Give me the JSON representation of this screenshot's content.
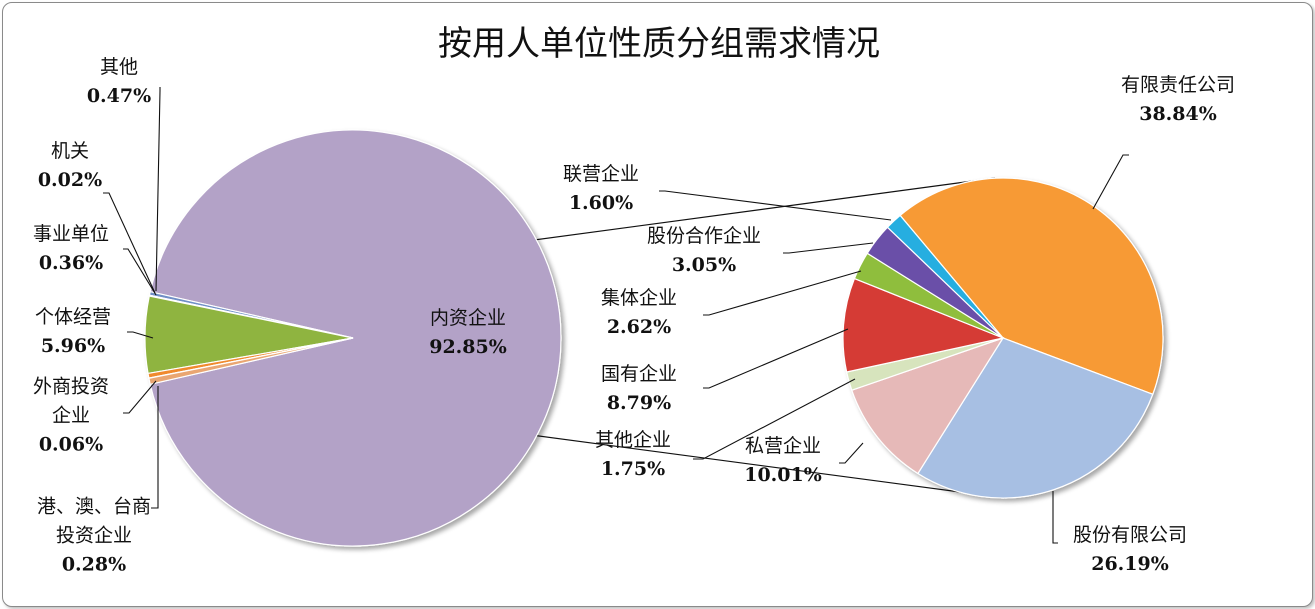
{
  "chart_data": {
    "type": "pie",
    "title": "按用人单位性质分组需求情况",
    "primary": {
      "name": "",
      "slices": [
        {
          "key": "neizi",
          "label_lines": [
            "内资企业"
          ],
          "value_text": "92.85%",
          "value": 92.85,
          "color": "#b3a2c7"
        },
        {
          "key": "gangao",
          "label_lines": [
            "港、澳、台商",
            "投资企业"
          ],
          "value_text": "0.28%",
          "value": 0.28,
          "color": "#6f8fc6"
        },
        {
          "key": "waishang",
          "label_lines": [
            "外商投资",
            "企业"
          ],
          "value_text": "0.06%",
          "value": 0.06,
          "color": "#4f81bd"
        },
        {
          "key": "geti",
          "label_lines": [
            "个体经营"
          ],
          "value_text": "5.96%",
          "value": 5.96,
          "color": "#8fb441"
        },
        {
          "key": "shiye",
          "label_lines": [
            "事业单位"
          ],
          "value_text": "0.36%",
          "value": 0.36,
          "color": "#f08a2d"
        },
        {
          "key": "jiguan",
          "label_lines": [
            "机关"
          ],
          "value_text": "0.02%",
          "value": 0.02,
          "color": "#c0504d"
        },
        {
          "key": "qita",
          "label_lines": [
            "其他"
          ],
          "value_text": "0.47%",
          "value": 0.47,
          "color": "#e9a672"
        }
      ]
    },
    "secondary": {
      "name": "",
      "slices": [
        {
          "key": "youxian",
          "label_lines": [
            "有限责任公司"
          ],
          "value_text": "38.84%",
          "value": 38.84,
          "color": "#f79a35"
        },
        {
          "key": "gufen",
          "label_lines": [
            "股份有限公司"
          ],
          "value_text": "26.19%",
          "value": 26.19,
          "color": "#a7bfe3"
        },
        {
          "key": "siying",
          "label_lines": [
            "私营企业"
          ],
          "value_text": "10.01%",
          "value": 10.01,
          "color": "#e6b9b8"
        },
        {
          "key": "qitaqiye",
          "label_lines": [
            "其他企业"
          ],
          "value_text": "1.75%",
          "value": 1.75,
          "color": "#d7e4bd"
        },
        {
          "key": "guoyou",
          "label_lines": [
            "国有企业"
          ],
          "value_text": "8.79%",
          "value": 8.79,
          "color": "#d53a36"
        },
        {
          "key": "jiti",
          "label_lines": [
            "集体企业"
          ],
          "value_text": "2.62%",
          "value": 2.62,
          "color": "#8fbe3e"
        },
        {
          "key": "gufenhezuo",
          "label_lines": [
            "股份合作企业"
          ],
          "value_text": "3.05%",
          "value": 3.05,
          "color": "#6a4fa8"
        },
        {
          "key": "lianying",
          "label_lines": [
            "联营企业"
          ],
          "value_text": "1.60%",
          "value": 1.6,
          "color": "#27aee0"
        }
      ]
    },
    "legend": "none",
    "grid": false
  }
}
